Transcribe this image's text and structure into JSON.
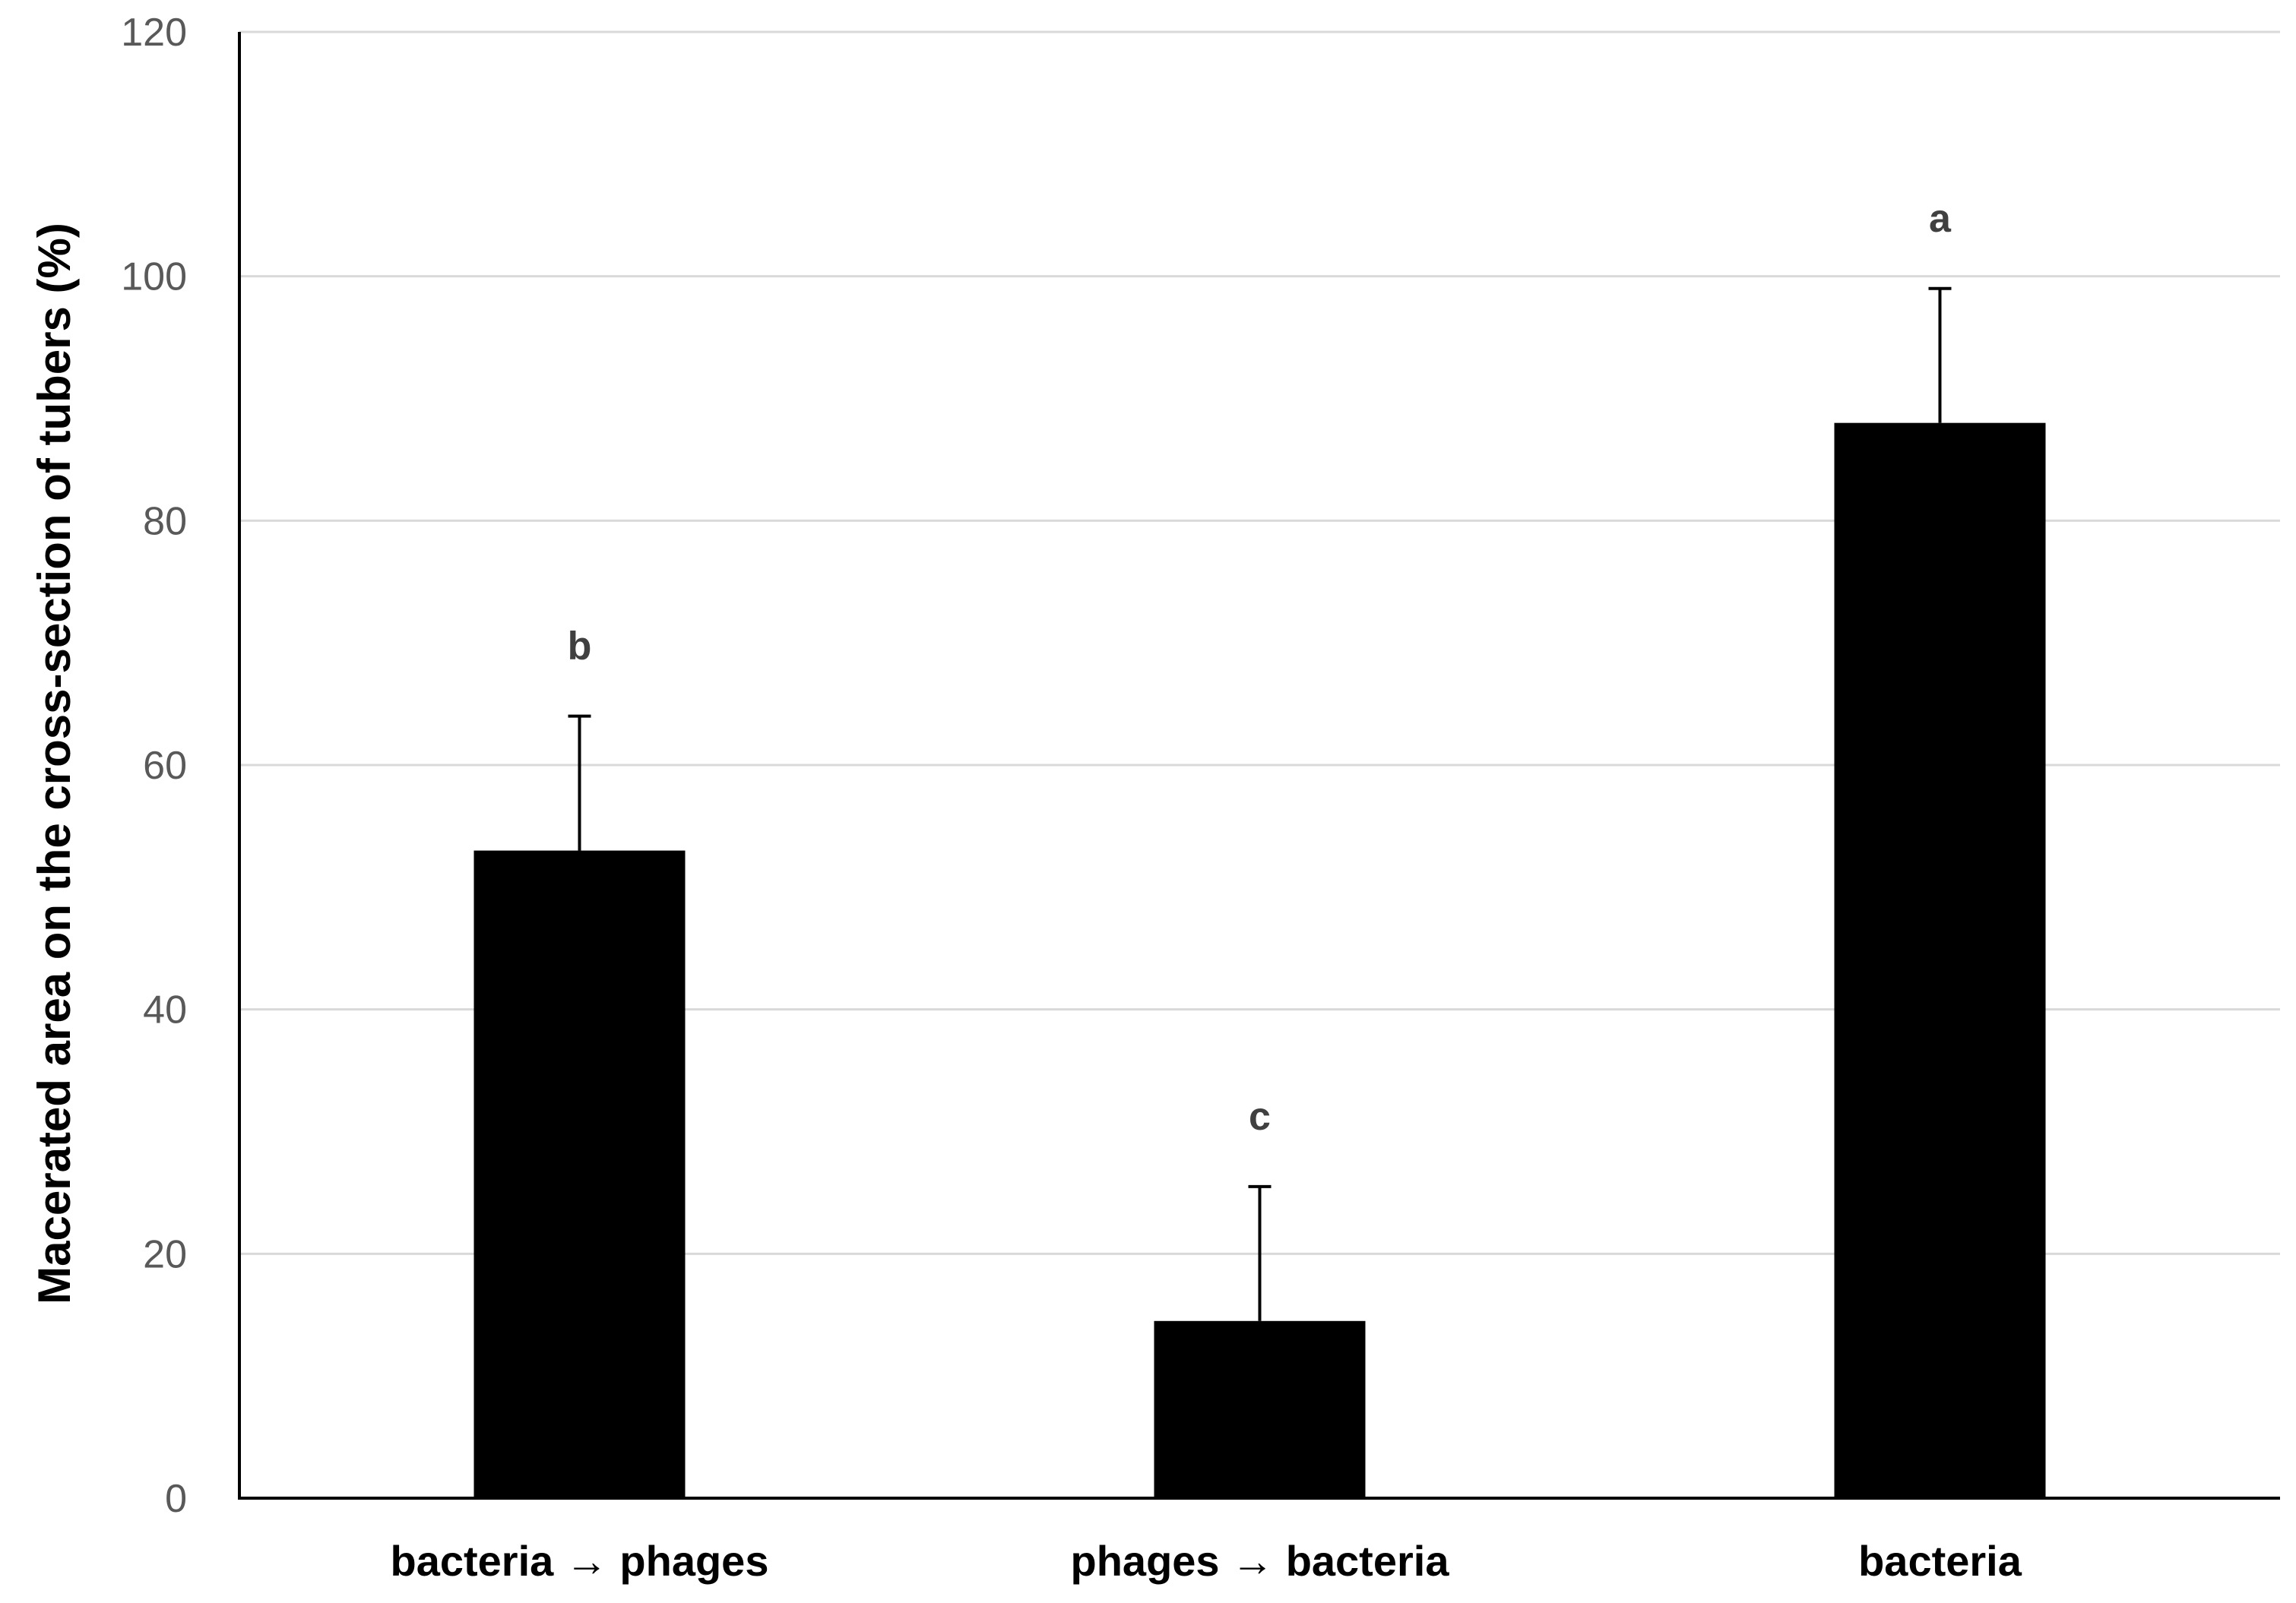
{
  "chart_data": {
    "type": "bar",
    "title": "",
    "xlabel": "",
    "ylabel": "Macerated area on the cross-section of tubers (%)",
    "categories": [
      "bacteria → phages",
      "phages → bacteria",
      "bacteria"
    ],
    "values": [
      53,
      14.5,
      88
    ],
    "error_plus": [
      11,
      11,
      11
    ],
    "significance_letters": [
      "b",
      "c",
      "a"
    ],
    "ylim": [
      0,
      120
    ],
    "yticks": [
      0,
      20,
      40,
      60,
      80,
      100,
      120
    ],
    "grid": true,
    "legend": "none",
    "colors": {
      "bar": "#000000",
      "grid": "#d9d9d9",
      "tick_text": "#595959",
      "letter_text": "#404040"
    }
  }
}
